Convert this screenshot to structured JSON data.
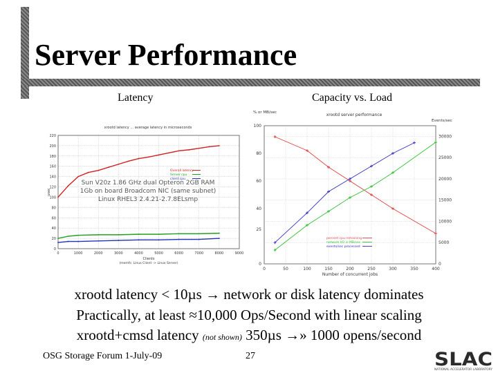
{
  "slide": {
    "title": "Server Performance",
    "captions": {
      "left": "Latency",
      "right": "Capacity vs. Load"
    },
    "bullets": [
      {
        "pre": "xrootd latency < 10µs → network or disk latency dominates"
      },
      {
        "pre": "Practically, at least ≈10,000 Ops/Second with linear scaling"
      },
      {
        "pre": "xrootd+cmsd latency ",
        "small": "(not shown)",
        "post": " 350µs →» 1000 opens/second"
      }
    ],
    "footer": {
      "left": "OSG Storage Forum  1-July-09",
      "page": "27"
    },
    "logo": {
      "text": "SLAC",
      "sub": "NATIONAL ACCELERATOR LABORATORY",
      "color": "#2b2b2b"
    }
  },
  "chart_data": [
    {
      "type": "line",
      "title": "xrootd latency ... average latency in microseconds",
      "xlabel": "Clients",
      "xlabel_sub": "(memfs: Linux Client -> Linux Server)",
      "ylabel": "usec",
      "xlim": [
        0,
        9000
      ],
      "ylim": [
        0,
        220
      ],
      "x_ticks": [
        0,
        1000,
        2000,
        3000,
        4000,
        5000,
        6000,
        7000,
        8000,
        9000
      ],
      "y_ticks": [
        0,
        20,
        40,
        60,
        80,
        100,
        120,
        140,
        160,
        180,
        200,
        220
      ],
      "annotation": [
        "Sun V20z 1.86 GHz dual Opteron 2GB RAM",
        "1Gb on board Broadcom NIC (same subnet)",
        "Linux RHEL3 2.4.21-2.7.8ELsmp"
      ],
      "series": [
        {
          "name": "Overall latency",
          "color": "#d22020",
          "x": [
            0,
            500,
            1000,
            1500,
            2000,
            2500,
            3000,
            3500,
            4000,
            4500,
            5000,
            5500,
            6000,
            6500,
            7000,
            7500,
            8000
          ],
          "y": [
            100,
            122,
            140,
            148,
            152,
            158,
            164,
            170,
            175,
            178,
            182,
            186,
            190,
            192,
            195,
            198,
            200
          ]
        },
        {
          "name": "Server cpu",
          "color": "#20a020",
          "x": [
            0,
            500,
            1000,
            2000,
            3000,
            4000,
            5000,
            6000,
            7000,
            8000
          ],
          "y": [
            20,
            24,
            26,
            27,
            27,
            28,
            28,
            29,
            29,
            30
          ]
        },
        {
          "name": "client cpu",
          "color": "#2030c0",
          "x": [
            0,
            500,
            1000,
            2000,
            3000,
            4000,
            5000,
            6000,
            7000,
            8000
          ],
          "y": [
            12,
            14,
            14,
            15,
            16,
            17,
            17,
            18,
            18,
            20
          ]
        }
      ]
    },
    {
      "type": "line",
      "title": "xrootd server performance",
      "xlabel": "Number of concurrent jobs",
      "ylabel_left": "% or MB/sec",
      "ylabel_right": "Events/sec",
      "xlim": [
        0,
        400
      ],
      "ylim_left": [
        0,
        100
      ],
      "ylim_right": [
        0,
        32500
      ],
      "x_ticks": [
        0,
        50,
        100,
        150,
        200,
        250,
        300,
        350,
        400
      ],
      "y_ticks_left": [
        0,
        25,
        40,
        60,
        80,
        100
      ],
      "y_ticks_right": [
        0,
        5000,
        10000,
        15000,
        20000,
        25000,
        30000
      ],
      "series": [
        {
          "name": "percent cpu remaining",
          "color": "#e04040",
          "marker": "plus",
          "x": [
            25,
            100,
            150,
            200,
            250,
            300,
            400
          ],
          "y": [
            92,
            82,
            70,
            60,
            50,
            40,
            22
          ]
        },
        {
          "name": "network I/O in MB/sec",
          "color": "#30c030",
          "marker": "x",
          "x": [
            25,
            100,
            150,
            200,
            250,
            300,
            400
          ],
          "y": [
            10,
            28,
            38,
            48,
            56,
            66,
            88
          ]
        },
        {
          "name": "events/sec processed",
          "color": "#3030c0",
          "marker": "asterisk",
          "x": [
            25,
            100,
            150,
            200,
            250,
            300,
            350
          ],
          "y": [
            5000,
            12000,
            17000,
            20000,
            23000,
            26000,
            28500
          ]
        }
      ]
    }
  ]
}
